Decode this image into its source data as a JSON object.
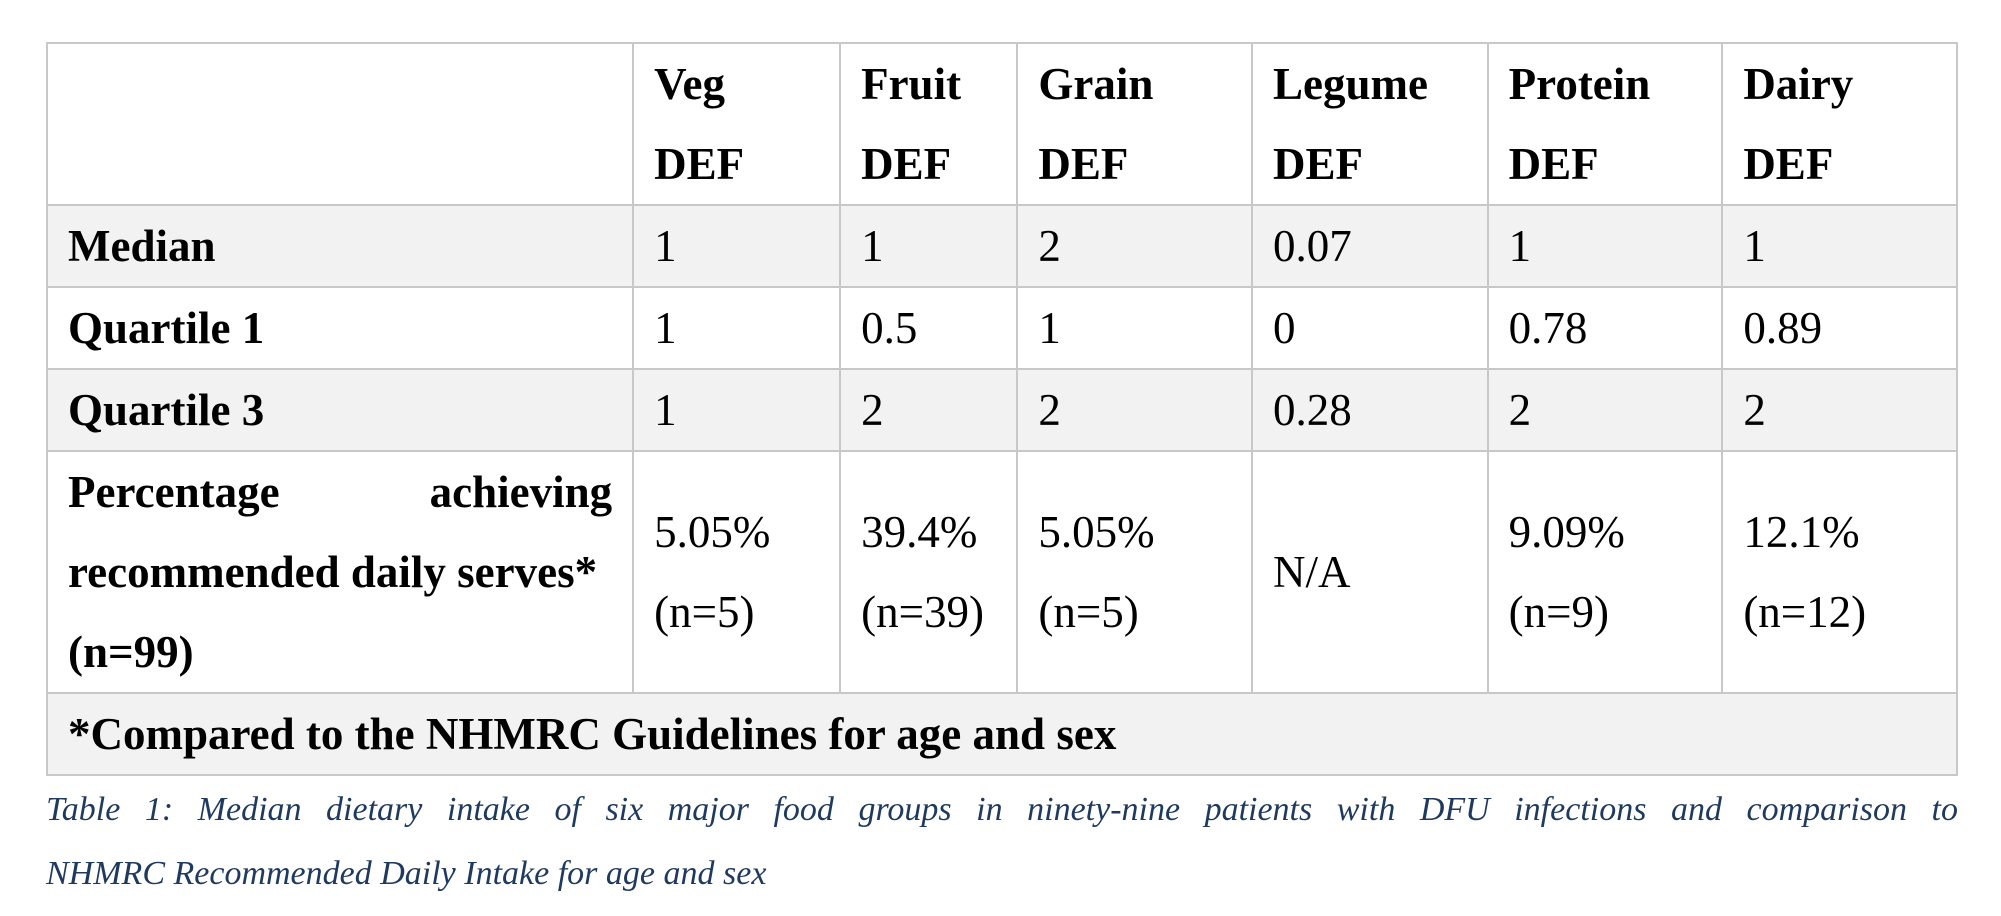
{
  "table": {
    "columns": [
      {
        "line1": "Veg",
        "line2": "DEF"
      },
      {
        "line1": "Fruit",
        "line2": "DEF"
      },
      {
        "line1": "Grain",
        "line2": "DEF"
      },
      {
        "line1": "Legume",
        "line2": "DEF"
      },
      {
        "line1": "Protein",
        "line2": "DEF"
      },
      {
        "line1": "Dairy",
        "line2": "DEF"
      }
    ],
    "rows": [
      {
        "label": "Median",
        "values": [
          "1",
          "1",
          "2",
          "0.07",
          "1",
          "1"
        ]
      },
      {
        "label": "Quartile 1",
        "values": [
          "1",
          "0.5",
          "1",
          "0",
          "0.78",
          "0.89"
        ]
      },
      {
        "label": "Quartile 3",
        "values": [
          "1",
          "2",
          "2",
          "0.28",
          "2",
          "2"
        ]
      }
    ],
    "percentage_row": {
      "label_line1": "Percentage achieving",
      "label_line2": "recommended daily serves*",
      "label_line3": "(n=99)",
      "values": [
        {
          "pct": "5.05%",
          "n": "(n=5)"
        },
        {
          "pct": "39.4%",
          "n": "(n=39)"
        },
        {
          "pct": "5.05%",
          "n": "(n=5)"
        },
        {
          "pct": "",
          "n": "N/A"
        },
        {
          "pct": "9.09%",
          "n": "(n=9)"
        },
        {
          "pct": "12.1%",
          "n": "(n=12)"
        }
      ]
    },
    "footnote": "*Compared to the NHMRC Guidelines for age and sex"
  },
  "caption": {
    "line1": "Table 1: Median dietary intake of six major food groups in ninety-nine patients with DFU infections and comparison to",
    "line2": "NHMRC Recommended Daily Intake for age and sex"
  },
  "colors": {
    "border": "#c8c8c8",
    "shade": "#f2f2f2",
    "caption": "#1f3a5f"
  }
}
